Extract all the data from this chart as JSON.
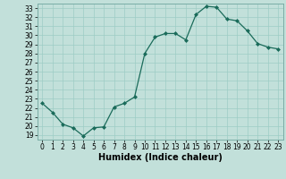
{
  "x": [
    0,
    1,
    2,
    3,
    4,
    5,
    6,
    7,
    8,
    9,
    10,
    11,
    12,
    13,
    14,
    15,
    16,
    17,
    18,
    19,
    20,
    21,
    22,
    23
  ],
  "y": [
    22.5,
    21.5,
    20.2,
    19.8,
    18.9,
    19.8,
    19.9,
    22.1,
    22.5,
    23.2,
    28.0,
    29.8,
    30.2,
    30.2,
    29.5,
    32.3,
    33.2,
    33.1,
    31.8,
    31.6,
    30.5,
    29.1,
    28.7,
    28.5
  ],
  "xlabel": "Humidex (Indice chaleur)",
  "xlim": [
    -0.5,
    23.5
  ],
  "ylim": [
    18.5,
    33.5
  ],
  "yticks": [
    19,
    20,
    21,
    22,
    23,
    24,
    25,
    26,
    27,
    28,
    29,
    30,
    31,
    32,
    33
  ],
  "xticks": [
    0,
    1,
    2,
    3,
    4,
    5,
    6,
    7,
    8,
    9,
    10,
    11,
    12,
    13,
    14,
    15,
    16,
    17,
    18,
    19,
    20,
    21,
    22,
    23
  ],
  "line_color": "#1a6b5a",
  "marker_color": "#1a6b5a",
  "bg_color": "#c2e0da",
  "grid_color": "#9dccc5",
  "fig_bg": "#c2e0da",
  "tick_fontsize": 5.5,
  "xlabel_fontsize": 7.0
}
